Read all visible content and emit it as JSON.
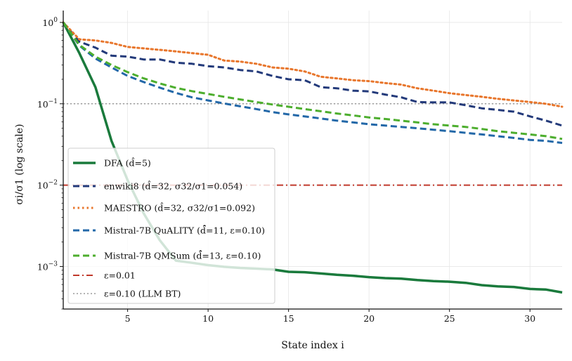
{
  "chart_data": {
    "type": "line",
    "xlabel": "State index i",
    "ylabel": "σi/σ1  (log scale)",
    "xlim": [
      1,
      32
    ],
    "ylim": [
      0.0003,
      1.4
    ],
    "yscale": "log",
    "grid": true,
    "legend_position": "lower-left",
    "x_ticks": [
      5,
      10,
      15,
      20,
      25,
      30
    ],
    "x_tick_labels": [
      "5",
      "10",
      "15",
      "20",
      "25",
      "30"
    ],
    "y_ticks": [
      1,
      0.1,
      0.01,
      0.001
    ],
    "y_tick_labels": [
      {
        "base": "10",
        "exp": "0"
      },
      {
        "base": "10",
        "exp": "−1"
      },
      {
        "base": "10",
        "exp": "−2"
      },
      {
        "base": "10",
        "exp": "−3"
      }
    ],
    "series": [
      {
        "name": "DFA (d̂=5)",
        "color": "#1a7a3c",
        "dash": "solid",
        "width": 3.5,
        "x": [
          1,
          2,
          3,
          4,
          5,
          6,
          7,
          8,
          9,
          10,
          11,
          12,
          13,
          14,
          15,
          16,
          17,
          18,
          19,
          20,
          21,
          22,
          23,
          24,
          25,
          26,
          27,
          28,
          29,
          30,
          31,
          32
        ],
        "y": [
          1.0,
          0.42,
          0.16,
          0.035,
          0.0115,
          0.0045,
          0.0021,
          0.00118,
          0.00111,
          0.00104,
          0.00099,
          0.00096,
          0.00094,
          0.00092,
          0.00086,
          0.00085,
          0.00082,
          0.00079,
          0.00077,
          0.00074,
          0.00072,
          0.00071,
          0.00068,
          0.00066,
          0.00065,
          0.00063,
          0.00059,
          0.00057,
          0.00056,
          0.00053,
          0.00052,
          0.00048
        ]
      },
      {
        "name": "enwiki8 (d̂=32, σ32/σ1=0.054)",
        "color": "#233a7a",
        "dash": "dash",
        "width": 3,
        "x": [
          1,
          2,
          3,
          4,
          5,
          6,
          7,
          8,
          9,
          10,
          11,
          12,
          13,
          14,
          15,
          16,
          17,
          18,
          19,
          20,
          21,
          22,
          23,
          24,
          25,
          26,
          27,
          28,
          29,
          30,
          31,
          32
        ],
        "y": [
          1.0,
          0.58,
          0.49,
          0.39,
          0.38,
          0.35,
          0.35,
          0.32,
          0.31,
          0.29,
          0.28,
          0.26,
          0.25,
          0.22,
          0.2,
          0.195,
          0.16,
          0.155,
          0.145,
          0.142,
          0.13,
          0.12,
          0.105,
          0.104,
          0.104,
          0.096,
          0.088,
          0.084,
          0.08,
          0.07,
          0.062,
          0.054
        ]
      },
      {
        "name": "MAESTRO (d̂=32, σ32/σ1=0.092)",
        "color": "#e8762c",
        "dash": "dot",
        "width": 3,
        "x": [
          1,
          2,
          3,
          4,
          5,
          6,
          7,
          8,
          9,
          10,
          11,
          12,
          13,
          14,
          15,
          16,
          17,
          18,
          19,
          20,
          21,
          22,
          23,
          24,
          25,
          26,
          27,
          28,
          29,
          30,
          31,
          32
        ],
        "y": [
          1.0,
          0.62,
          0.6,
          0.56,
          0.5,
          0.48,
          0.46,
          0.44,
          0.42,
          0.4,
          0.34,
          0.33,
          0.31,
          0.28,
          0.27,
          0.25,
          0.215,
          0.205,
          0.195,
          0.19,
          0.18,
          0.172,
          0.155,
          0.145,
          0.135,
          0.128,
          0.122,
          0.115,
          0.11,
          0.105,
          0.1,
          0.092
        ]
      },
      {
        "name": "Mistral-7B QuALITY (d̄̂=11, ε=0.10)",
        "color": "#2368a8",
        "dash": "dash",
        "width": 3,
        "x": [
          1,
          2,
          3,
          4,
          5,
          6,
          7,
          8,
          9,
          10,
          11,
          12,
          13,
          14,
          15,
          16,
          17,
          18,
          19,
          20,
          21,
          22,
          23,
          24,
          25,
          26,
          27,
          28,
          29,
          30,
          31,
          32
        ],
        "y": [
          1.0,
          0.52,
          0.36,
          0.28,
          0.22,
          0.185,
          0.158,
          0.136,
          0.12,
          0.11,
          0.101,
          0.093,
          0.086,
          0.079,
          0.074,
          0.07,
          0.066,
          0.062,
          0.059,
          0.056,
          0.054,
          0.052,
          0.05,
          0.048,
          0.046,
          0.044,
          0.042,
          0.04,
          0.038,
          0.036,
          0.035,
          0.033
        ]
      },
      {
        "name": "Mistral-7B QMSum (d̄̂=13, ε=0.10)",
        "color": "#4dae2e",
        "dash": "dash",
        "width": 3,
        "x": [
          1,
          2,
          3,
          4,
          5,
          6,
          7,
          8,
          9,
          10,
          11,
          12,
          13,
          14,
          15,
          16,
          17,
          18,
          19,
          20,
          21,
          22,
          23,
          24,
          25,
          26,
          27,
          28,
          29,
          30,
          31,
          32
        ],
        "y": [
          1.0,
          0.53,
          0.38,
          0.3,
          0.245,
          0.205,
          0.178,
          0.157,
          0.143,
          0.132,
          0.122,
          0.113,
          0.105,
          0.098,
          0.092,
          0.086,
          0.081,
          0.076,
          0.072,
          0.068,
          0.065,
          0.062,
          0.059,
          0.056,
          0.054,
          0.052,
          0.049,
          0.046,
          0.044,
          0.042,
          0.04,
          0.037
        ]
      }
    ],
    "reference_lines": [
      {
        "name": "ε=0.01",
        "y": 0.01,
        "color": "#c0392b",
        "dash": "dashdot"
      },
      {
        "name": "ε=0.10 (LLM BT)",
        "y": 0.1,
        "color": "#888888",
        "dash": "dotted"
      }
    ]
  }
}
